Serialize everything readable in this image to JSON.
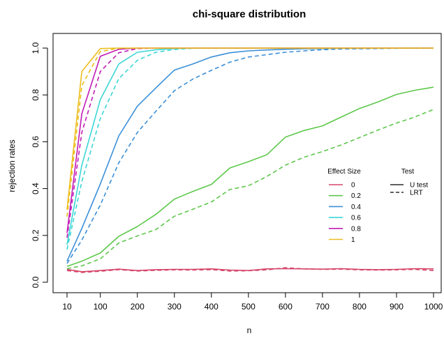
{
  "chart_data": {
    "type": "line",
    "title": "chi-square distribution",
    "xlabel": "n",
    "ylabel": "rejection rates",
    "x_ticks": [
      10,
      100,
      200,
      300,
      400,
      500,
      600,
      700,
      800,
      900,
      1000
    ],
    "y_ticks": [
      "0.0",
      "0.2",
      "0.4",
      "0.6",
      "0.8",
      "1.0"
    ],
    "xlim": [
      10,
      1000
    ],
    "ylim": [
      0,
      1
    ],
    "grid": false,
    "legend": {
      "effect_title": "Effect Size",
      "test_title": "Test",
      "effect_entries": [
        {
          "label": "0",
          "color": "#D6456A"
        },
        {
          "label": "0.2",
          "color": "#5DC84A"
        },
        {
          "label": "0.4",
          "color": "#3A8FD8"
        },
        {
          "label": "0.6",
          "color": "#3CD6D6"
        },
        {
          "label": "0.8",
          "color": "#C21BB5"
        },
        {
          "label": "1",
          "color": "#EBBE1E"
        }
      ],
      "test_entries": [
        {
          "label": "U test",
          "style": "solid"
        },
        {
          "label": "LRT",
          "style": "dashed"
        }
      ]
    },
    "x": [
      10,
      50,
      100,
      150,
      200,
      250,
      300,
      350,
      400,
      450,
      500,
      550,
      600,
      650,
      700,
      750,
      800,
      850,
      900,
      950,
      1000
    ],
    "series": [
      {
        "effect": "0",
        "test": "U test",
        "color": "#D6456A",
        "dash": false,
        "values": [
          0.055,
          0.045,
          0.05,
          0.056,
          0.05,
          0.054,
          0.055,
          0.055,
          0.057,
          0.052,
          0.05,
          0.057,
          0.058,
          0.057,
          0.056,
          0.058,
          0.055,
          0.054,
          0.055,
          0.058,
          0.057
        ]
      },
      {
        "effect": "0",
        "test": "LRT",
        "color": "#D6456A",
        "dash": true,
        "values": [
          0.05,
          0.042,
          0.047,
          0.054,
          0.048,
          0.051,
          0.053,
          0.052,
          0.054,
          0.048,
          0.049,
          0.053,
          0.062,
          0.057,
          0.055,
          0.056,
          0.053,
          0.052,
          0.053,
          0.055,
          0.05
        ]
      },
      {
        "effect": "0.2",
        "test": "U test",
        "color": "#5DC84A",
        "dash": false,
        "values": [
          0.068,
          0.09,
          0.125,
          0.196,
          0.238,
          0.29,
          0.355,
          0.388,
          0.418,
          0.488,
          0.515,
          0.545,
          0.62,
          0.648,
          0.668,
          0.705,
          0.742,
          0.77,
          0.802,
          0.82,
          0.833
        ]
      },
      {
        "effect": "0.2",
        "test": "LRT",
        "color": "#5DC84A",
        "dash": true,
        "values": [
          0.058,
          0.07,
          0.1,
          0.168,
          0.198,
          0.225,
          0.282,
          0.312,
          0.343,
          0.396,
          0.412,
          0.452,
          0.5,
          0.534,
          0.558,
          0.586,
          0.618,
          0.65,
          0.68,
          0.706,
          0.738
        ]
      },
      {
        "effect": "0.4",
        "test": "U test",
        "color": "#3A8FD8",
        "dash": false,
        "values": [
          0.09,
          0.23,
          0.42,
          0.625,
          0.752,
          0.83,
          0.906,
          0.932,
          0.962,
          0.98,
          0.988,
          0.992,
          0.995,
          0.997,
          0.998,
          0.999,
          0.999,
          1.0,
          1.0,
          1.0,
          1.0
        ]
      },
      {
        "effect": "0.4",
        "test": "LRT",
        "color": "#3A8FD8",
        "dash": true,
        "values": [
          0.08,
          0.18,
          0.33,
          0.51,
          0.64,
          0.73,
          0.818,
          0.868,
          0.905,
          0.94,
          0.962,
          0.972,
          0.982,
          0.988,
          0.993,
          0.996,
          0.997,
          0.998,
          0.999,
          1.0,
          1.0
        ]
      },
      {
        "effect": "0.6",
        "test": "U test",
        "color": "#3CD6D6",
        "dash": false,
        "values": [
          0.16,
          0.5,
          0.78,
          0.932,
          0.982,
          0.993,
          0.998,
          1.0,
          1.0,
          1.0,
          1.0,
          1.0,
          1.0,
          1.0,
          1.0,
          1.0,
          1.0,
          1.0,
          1.0,
          1.0,
          1.0
        ]
      },
      {
        "effect": "0.6",
        "test": "LRT",
        "color": "#3CD6D6",
        "dash": true,
        "values": [
          0.14,
          0.43,
          0.7,
          0.87,
          0.948,
          0.982,
          0.994,
          0.999,
          1.0,
          1.0,
          1.0,
          1.0,
          1.0,
          1.0,
          1.0,
          1.0,
          1.0,
          1.0,
          1.0,
          1.0,
          1.0
        ]
      },
      {
        "effect": "0.8",
        "test": "U test",
        "color": "#C21BB5",
        "dash": false,
        "values": [
          0.21,
          0.72,
          0.965,
          0.995,
          1.0,
          1.0,
          1.0,
          1.0,
          1.0,
          1.0,
          1.0,
          1.0,
          1.0,
          1.0,
          1.0,
          1.0,
          1.0,
          1.0,
          1.0,
          1.0,
          1.0
        ]
      },
      {
        "effect": "0.8",
        "test": "LRT",
        "color": "#C21BB5",
        "dash": true,
        "values": [
          0.19,
          0.64,
          0.9,
          0.98,
          0.998,
          1.0,
          1.0,
          1.0,
          1.0,
          1.0,
          1.0,
          1.0,
          1.0,
          1.0,
          1.0,
          1.0,
          1.0,
          1.0,
          1.0,
          1.0,
          1.0
        ]
      },
      {
        "effect": "1",
        "test": "U test",
        "color": "#EBBE1E",
        "dash": false,
        "values": [
          0.31,
          0.9,
          0.998,
          1.0,
          1.0,
          1.0,
          1.0,
          1.0,
          1.0,
          1.0,
          1.0,
          1.0,
          1.0,
          1.0,
          1.0,
          1.0,
          1.0,
          1.0,
          1.0,
          1.0,
          1.0
        ]
      },
      {
        "effect": "1",
        "test": "LRT",
        "color": "#EBBE1E",
        "dash": true,
        "values": [
          0.28,
          0.84,
          0.985,
          0.999,
          1.0,
          1.0,
          1.0,
          1.0,
          1.0,
          1.0,
          1.0,
          1.0,
          1.0,
          1.0,
          1.0,
          1.0,
          1.0,
          1.0,
          1.0,
          1.0,
          1.0
        ]
      }
    ]
  }
}
